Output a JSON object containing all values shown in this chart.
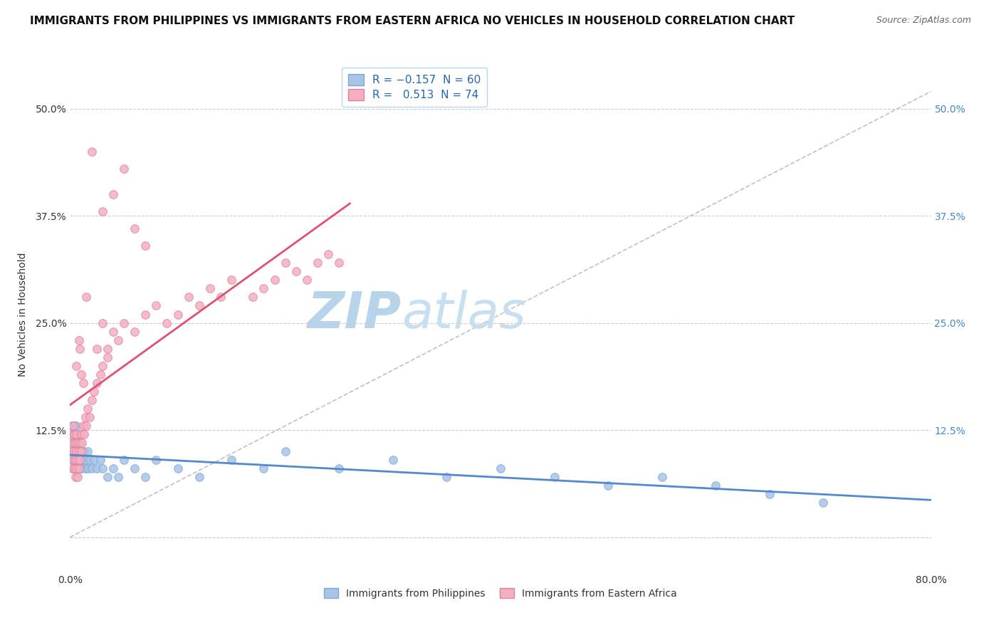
{
  "title": "IMMIGRANTS FROM PHILIPPINES VS IMMIGRANTS FROM EASTERN AFRICA NO VEHICLES IN HOUSEHOLD CORRELATION CHART",
  "source": "Source: ZipAtlas.com",
  "ylabel": "No Vehicles in Household",
  "xlim": [
    0.0,
    0.8
  ],
  "ylim": [
    -0.04,
    0.56
  ],
  "x_ticks": [
    0.0,
    0.2,
    0.4,
    0.6,
    0.8
  ],
  "x_tick_labels": [
    "0.0%",
    "",
    "",
    "",
    "80.0%"
  ],
  "y_ticks": [
    0.0,
    0.125,
    0.25,
    0.375,
    0.5
  ],
  "y_tick_labels": [
    "",
    "12.5%",
    "25.0%",
    "37.5%",
    "50.0%"
  ],
  "right_y_tick_labels": [
    "",
    "12.5%",
    "25.0%",
    "37.5%",
    "50.0%"
  ],
  "grid_color": "#cccccc",
  "background_color": "#ffffff",
  "watermark_color": "#cde0f0",
  "phil_color": "#aac4e8",
  "phil_edge": "#7aaad0",
  "phil_trend": "#5588cc",
  "eafrica_color": "#f4b0c0",
  "eafrica_edge": "#e080a0",
  "eafrica_trend": "#e05070",
  "title_fontsize": 11,
  "tick_fontsize": 10,
  "marker_size": 70,
  "phil_x": [
    0.001,
    0.002,
    0.002,
    0.003,
    0.003,
    0.003,
    0.004,
    0.004,
    0.004,
    0.005,
    0.005,
    0.005,
    0.006,
    0.006,
    0.006,
    0.007,
    0.007,
    0.007,
    0.008,
    0.008,
    0.009,
    0.009,
    0.01,
    0.01,
    0.011,
    0.011,
    0.012,
    0.013,
    0.014,
    0.015,
    0.016,
    0.017,
    0.018,
    0.02,
    0.022,
    0.025,
    0.028,
    0.03,
    0.035,
    0.04,
    0.045,
    0.05,
    0.06,
    0.07,
    0.08,
    0.1,
    0.12,
    0.15,
    0.18,
    0.2,
    0.25,
    0.3,
    0.35,
    0.4,
    0.45,
    0.5,
    0.55,
    0.6,
    0.65,
    0.7
  ],
  "phil_y": [
    0.11,
    0.09,
    0.13,
    0.1,
    0.12,
    0.08,
    0.11,
    0.13,
    0.09,
    0.1,
    0.12,
    0.08,
    0.11,
    0.09,
    0.13,
    0.1,
    0.08,
    0.12,
    0.09,
    0.11,
    0.1,
    0.08,
    0.12,
    0.09,
    0.1,
    0.08,
    0.09,
    0.1,
    0.08,
    0.09,
    0.1,
    0.08,
    0.09,
    0.08,
    0.09,
    0.08,
    0.09,
    0.08,
    0.07,
    0.08,
    0.07,
    0.09,
    0.08,
    0.07,
    0.09,
    0.08,
    0.07,
    0.09,
    0.08,
    0.1,
    0.08,
    0.09,
    0.07,
    0.08,
    0.07,
    0.06,
    0.07,
    0.06,
    0.05,
    0.04
  ],
  "eafrica_x": [
    0.001,
    0.002,
    0.002,
    0.003,
    0.003,
    0.003,
    0.004,
    0.004,
    0.004,
    0.005,
    0.005,
    0.005,
    0.006,
    0.006,
    0.006,
    0.007,
    0.007,
    0.007,
    0.008,
    0.008,
    0.009,
    0.009,
    0.01,
    0.01,
    0.011,
    0.012,
    0.013,
    0.014,
    0.015,
    0.016,
    0.018,
    0.02,
    0.022,
    0.025,
    0.028,
    0.03,
    0.035,
    0.04,
    0.045,
    0.05,
    0.06,
    0.07,
    0.08,
    0.09,
    0.1,
    0.11,
    0.12,
    0.13,
    0.14,
    0.15,
    0.17,
    0.18,
    0.19,
    0.2,
    0.21,
    0.22,
    0.23,
    0.24,
    0.25,
    0.05,
    0.04,
    0.06,
    0.07,
    0.03,
    0.02,
    0.015,
    0.025,
    0.03,
    0.035,
    0.008,
    0.006,
    0.01,
    0.012,
    0.009
  ],
  "eafrica_y": [
    0.1,
    0.08,
    0.12,
    0.09,
    0.11,
    0.13,
    0.08,
    0.1,
    0.12,
    0.09,
    0.11,
    0.07,
    0.1,
    0.12,
    0.08,
    0.09,
    0.11,
    0.07,
    0.1,
    0.08,
    0.09,
    0.11,
    0.1,
    0.12,
    0.11,
    0.13,
    0.12,
    0.14,
    0.13,
    0.15,
    0.14,
    0.16,
    0.17,
    0.18,
    0.19,
    0.2,
    0.22,
    0.24,
    0.23,
    0.25,
    0.24,
    0.26,
    0.27,
    0.25,
    0.26,
    0.28,
    0.27,
    0.29,
    0.28,
    0.3,
    0.28,
    0.29,
    0.3,
    0.32,
    0.31,
    0.3,
    0.32,
    0.33,
    0.32,
    0.43,
    0.4,
    0.36,
    0.34,
    0.38,
    0.45,
    0.28,
    0.22,
    0.25,
    0.21,
    0.23,
    0.2,
    0.19,
    0.18,
    0.22
  ]
}
